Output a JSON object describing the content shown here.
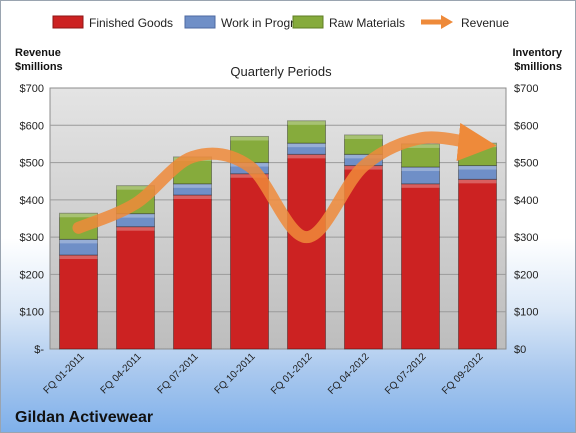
{
  "chart_data": {
    "type": "bar",
    "subtitle": "Quarterly Periods",
    "company": "Gildan Activewear",
    "ylabel_left": [
      "Revenue",
      "$millions"
    ],
    "ylabel_right": [
      "Inventory",
      "$millions"
    ],
    "categories": [
      "FQ 01-2011",
      "FQ 04-2011",
      "FQ 07-2011",
      "FQ 10-2011",
      "FQ 01-2012",
      "FQ 04-2012",
      "FQ 07-2012",
      "FQ 09-2012"
    ],
    "ylim": [
      0,
      700
    ],
    "yticks_left": [
      "$-",
      "$100",
      "$200",
      "$300",
      "$400",
      "$500",
      "$600",
      "$700"
    ],
    "yticks_right": [
      "$0",
      "$100",
      "$200",
      "$300",
      "$400",
      "$500",
      "$600",
      "$700"
    ],
    "grid": true,
    "legend_position": "top",
    "series": [
      {
        "name": "Finished Goods",
        "kind": "stacked-bar",
        "color": "#cc2222",
        "values": [
          252,
          328,
          413,
          470,
          522,
          492,
          443,
          455
        ]
      },
      {
        "name": "Work in Progress",
        "kind": "stacked-bar",
        "color": "#6f8fc7",
        "values": [
          42,
          35,
          30,
          30,
          30,
          30,
          45,
          37
        ]
      },
      {
        "name": "Raw Materials",
        "kind": "stacked-bar",
        "color": "#86ab3c",
        "values": [
          70,
          75,
          72,
          70,
          60,
          52,
          62,
          60
        ]
      },
      {
        "name": "Revenue",
        "kind": "line",
        "color": "#ee8a3a",
        "values": [
          325,
          390,
          515,
          490,
          300,
          490,
          565,
          550
        ]
      }
    ]
  }
}
